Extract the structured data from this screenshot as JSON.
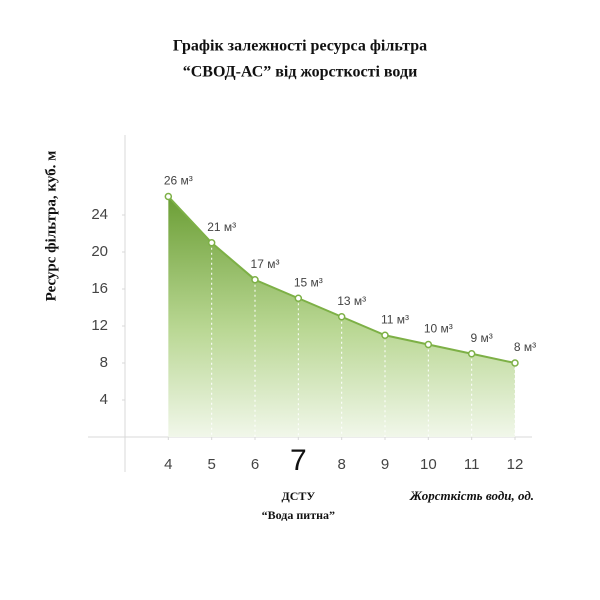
{
  "chart_data": {
    "type": "area",
    "title": [
      "Графік залежності ресурса фільтра",
      "“СВОД-АС” від жорсткості води"
    ],
    "x_label": "Жорсткість води, од.",
    "y_label": "Ресурс фільтра, куб. м",
    "x": [
      4,
      5,
      6,
      7,
      8,
      9,
      10,
      11,
      12
    ],
    "values": [
      26,
      21,
      17,
      15,
      13,
      11,
      10,
      9,
      8
    ],
    "value_labels": [
      "26 м³",
      "21 м³",
      "17 м³",
      "15 м³",
      "13 м³",
      "11 м³",
      "10 м³",
      "9 м³",
      "8 м³"
    ],
    "color": "#7db046",
    "xlim": [
      3,
      12.3
    ],
    "xticks": [
      4,
      5,
      6,
      7,
      8,
      9,
      10,
      11,
      12
    ],
    "ylim": [
      0,
      32
    ],
    "yticks": [
      4,
      8,
      12,
      16,
      20,
      24
    ],
    "grid": false,
    "annotation": {
      "x": 7,
      "text": [
        "ДСТУ",
        "“Вода питна”"
      ]
    }
  }
}
